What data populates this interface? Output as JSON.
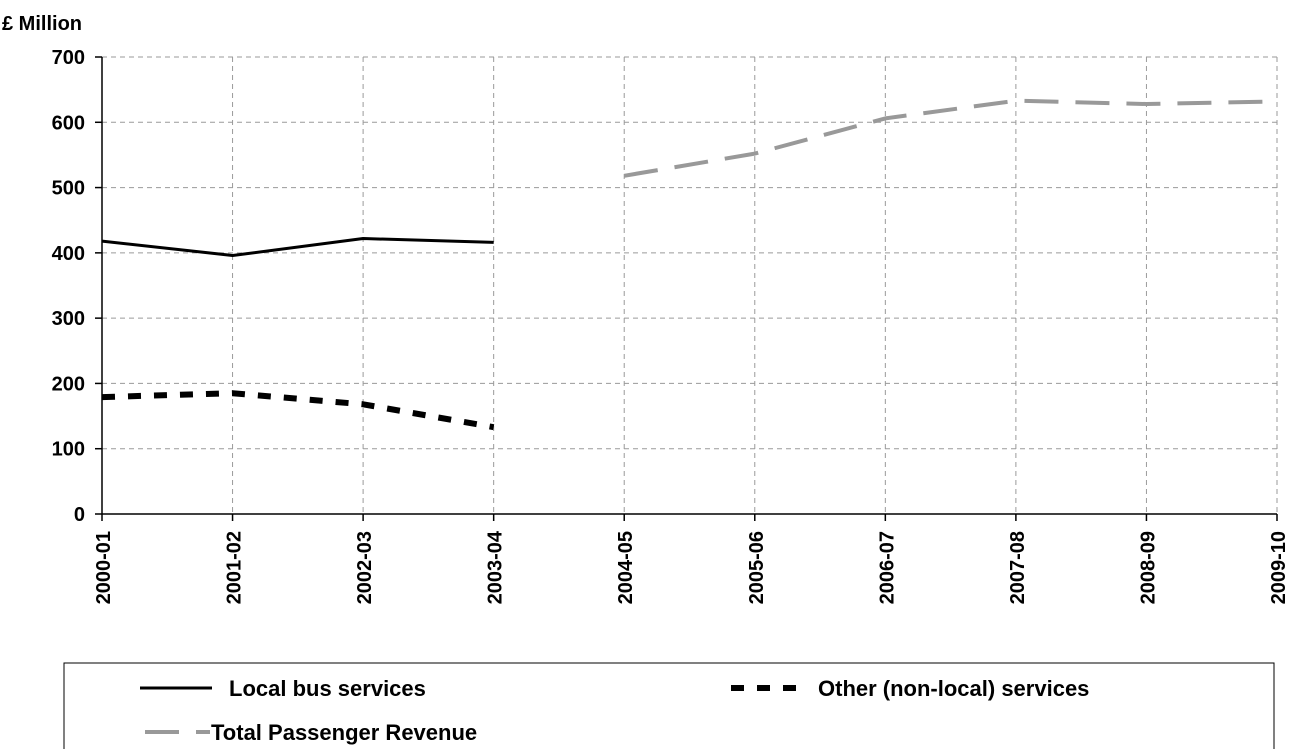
{
  "chart_data": {
    "type": "line",
    "ylabel": "£ Million",
    "ylim": [
      0,
      700
    ],
    "yticks": [
      0,
      100,
      200,
      300,
      400,
      500,
      600,
      700
    ],
    "categories": [
      "2000-01",
      "2001-02",
      "2002-03",
      "2003-04",
      "2004-05",
      "2005-06",
      "2006-07",
      "2007-08",
      "2008-09",
      "2009-10"
    ],
    "grid": true,
    "legend_position": "bottom",
    "series": [
      {
        "name": "Local bus services",
        "color": "#000000",
        "style": "solid",
        "values": [
          418,
          396,
          422,
          416,
          null,
          null,
          null,
          null,
          null,
          null
        ]
      },
      {
        "name": "Other (non-local) services",
        "color": "#000000",
        "style": "dotted",
        "values": [
          179,
          185,
          168,
          133,
          null,
          null,
          null,
          null,
          null,
          null
        ]
      },
      {
        "name": "Total Passenger Revenue",
        "color": "#999999",
        "style": "dashed",
        "values": [
          null,
          null,
          null,
          null,
          518,
          552,
          606,
          633,
          628,
          632
        ]
      }
    ]
  }
}
